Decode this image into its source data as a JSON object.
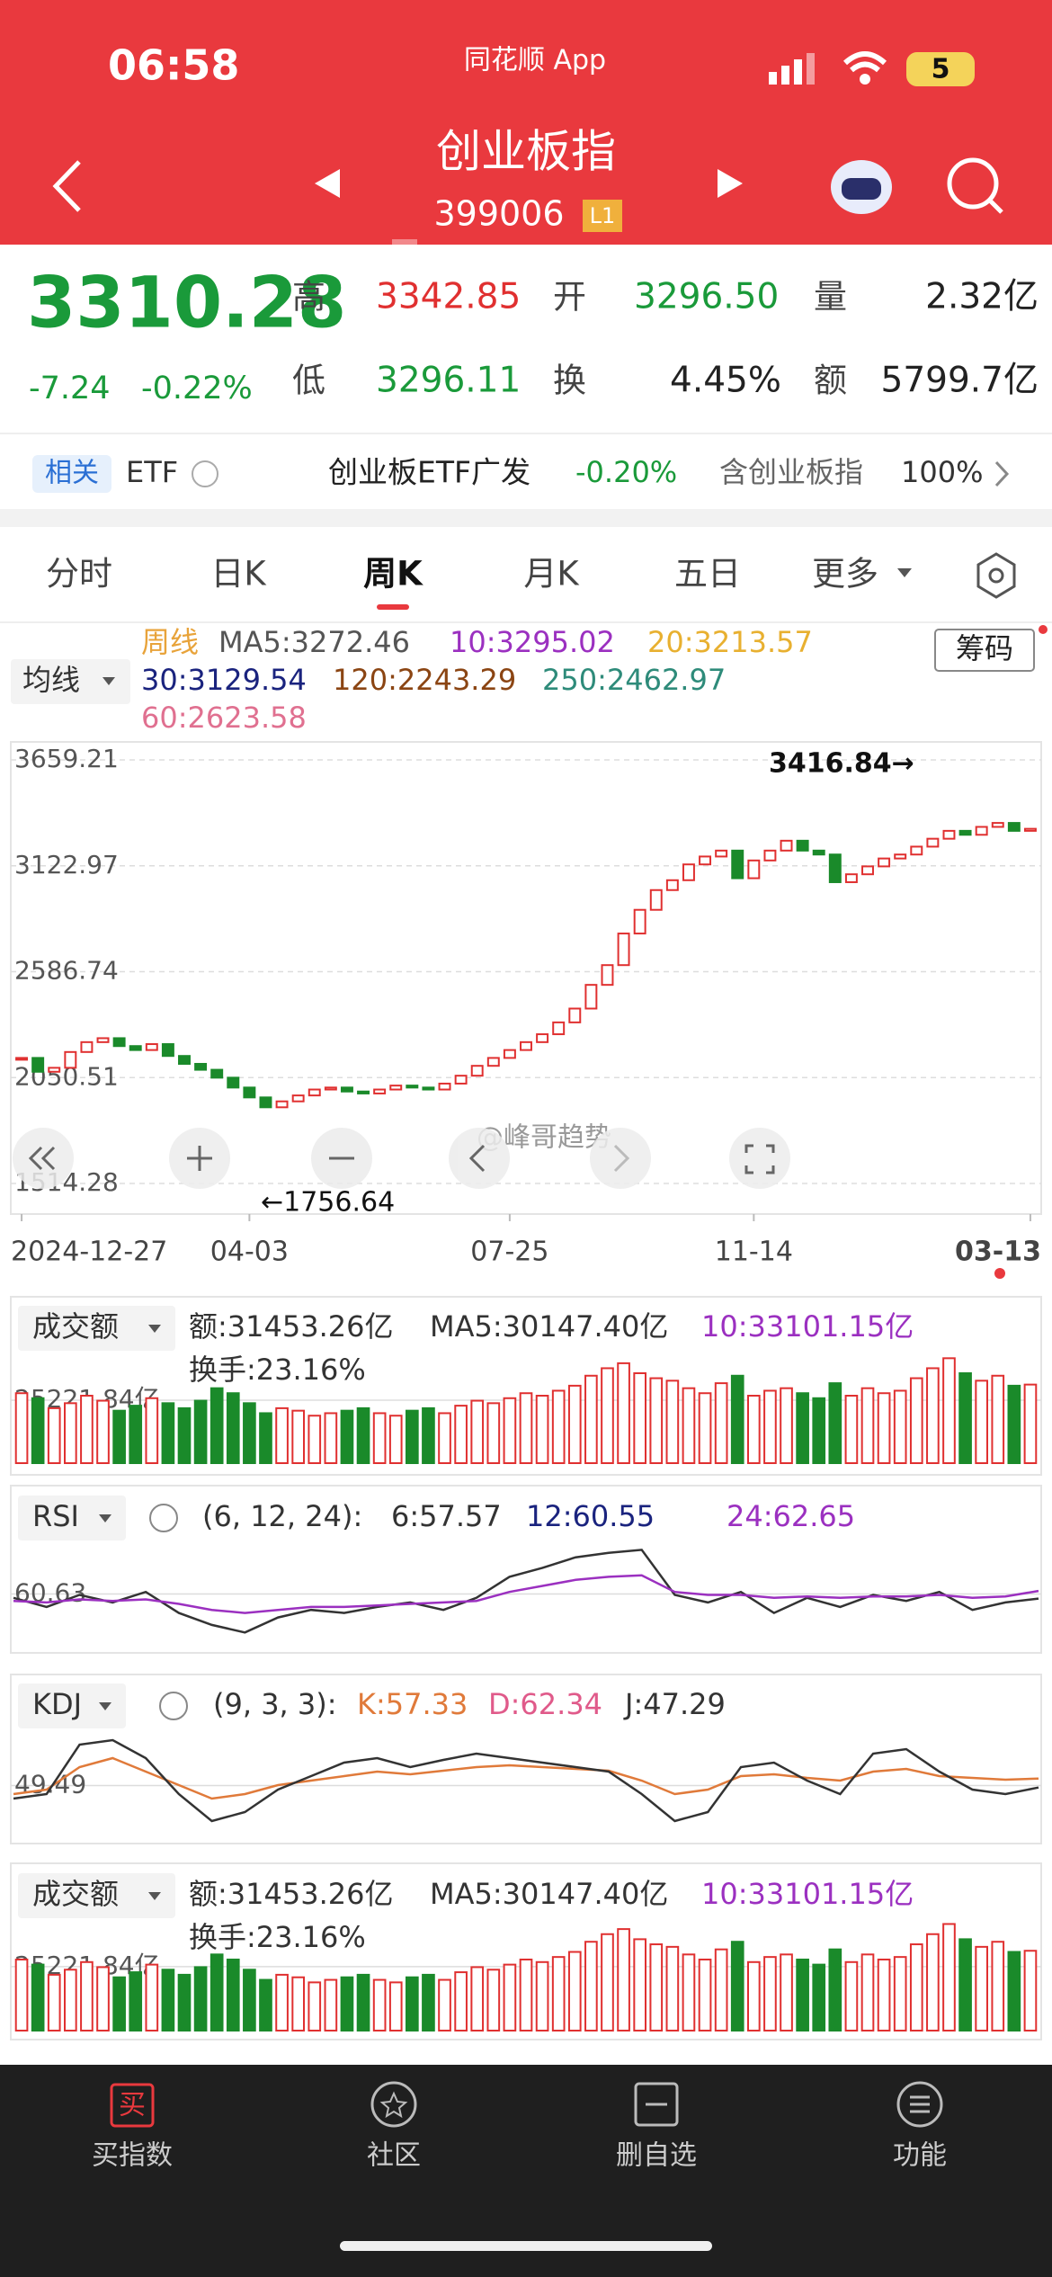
{
  "status_bar": {
    "time": "06:58",
    "app": "同花顺 App",
    "battery": "5"
  },
  "header": {
    "title": "创业板指",
    "code": "399006",
    "badge": "L1"
  },
  "quote": {
    "price": "3310.28",
    "change": "-7.24",
    "change_pct": "-0.22%",
    "rows": [
      [
        {
          "label": "高",
          "value": "3342.85"
        },
        {
          "label": "开",
          "value": "3296.50"
        },
        {
          "label": "量",
          "value": "2.32亿"
        }
      ],
      [
        {
          "label": "低",
          "value": "3296.11"
        },
        {
          "label": "换",
          "value": "4.45%"
        },
        {
          "label": "额",
          "value": "5799.7亿"
        }
      ]
    ]
  },
  "etf": {
    "tag": "相关",
    "name": "ETF",
    "fund": "创业板ETF广发",
    "fund_change": "-0.20%",
    "holding": "含创业板指",
    "holding_pct": "100%"
  },
  "tabs": [
    "分时",
    "日K",
    "周K",
    "月K",
    "五日",
    "更多"
  ],
  "ma_legend": {
    "button": "均线",
    "period": "周线",
    "items": [
      {
        "text": "MA5:3272.46",
        "color": "#555555"
      },
      {
        "text": "10:3295.02",
        "color": "#9b30c0"
      },
      {
        "text": "20:3213.57",
        "color": "#e8b030"
      },
      {
        "text": "30:3129.54",
        "color": "#1a237e"
      },
      {
        "text": "120:2243.29",
        "color": "#8b4513"
      },
      {
        "text": "250:2462.97",
        "color": "#2e8b7a"
      },
      {
        "text": "60:2623.58",
        "color": "#e07090"
      }
    ]
  },
  "chip_button": "筹码",
  "chart_data": [
    {
      "type": "candlestick",
      "categories": [
        "2024-12-27",
        null,
        null,
        null,
        null,
        null,
        null,
        null,
        null,
        null,
        null,
        null,
        null,
        null,
        "04-03",
        null,
        null,
        null,
        null,
        null,
        null,
        null,
        null,
        null,
        null,
        null,
        null,
        null,
        null,
        null,
        "07-25",
        null,
        null,
        null,
        null,
        null,
        null,
        null,
        null,
        null,
        null,
        null,
        null,
        null,
        null,
        "11-14",
        null,
        null,
        null,
        null,
        null,
        null,
        null,
        null,
        null,
        null,
        null,
        null,
        null,
        null,
        null,
        null,
        "03-13"
      ],
      "values": [
        2150,
        2080,
        2100,
        2180,
        2230,
        2250,
        2210,
        2190,
        2220,
        2160,
        2120,
        2090,
        2050,
        2000,
        1950,
        1900,
        1930,
        1960,
        1990,
        2000,
        1980,
        1970,
        1990,
        2010,
        2000,
        1990,
        2020,
        2060,
        2110,
        2150,
        2190,
        2230,
        2270,
        2330,
        2400,
        2520,
        2620,
        2780,
        2900,
        3000,
        3050,
        3130,
        3170,
        3200,
        3060,
        3150,
        3200,
        3250,
        3200,
        3180,
        3040,
        3080,
        3120,
        3160,
        3180,
        3220,
        3260,
        3300,
        3280,
        3320,
        3340,
        3300,
        3310.28
      ],
      "up_color": "#e03030",
      "down_color": "#1a8a2a",
      "ylim": [
        1514.28,
        3659.21
      ],
      "yticks": [
        1514.28,
        2050.51,
        2586.74,
        3122.97,
        3659.21
      ],
      "annotations": [
        {
          "text": "3416.84→"
        },
        {
          "text": "←1756.64"
        },
        {
          "text": "@峰哥趋势"
        }
      ]
    },
    {
      "type": "bar",
      "title": "成交额",
      "stats": [
        "额:31453.26亿",
        "MA5:30147.40亿",
        "10:33101.15亿"
      ],
      "turnover": "换手:23.16%",
      "values": [
        28000,
        26000,
        22000,
        24000,
        27000,
        25000,
        21000,
        23000,
        26000,
        24000,
        22000,
        25000,
        30000,
        28000,
        24000,
        20000,
        22000,
        21000,
        19000,
        20000,
        21000,
        22000,
        20000,
        19000,
        21000,
        22000,
        20000,
        23000,
        25000,
        24000,
        26000,
        28000,
        27000,
        29000,
        31000,
        35000,
        38000,
        40000,
        36000,
        34000,
        33000,
        30000,
        28000,
        32000,
        35000,
        27000,
        29000,
        30000,
        28000,
        26000,
        32000,
        27000,
        30000,
        28000,
        29000,
        34000,
        38000,
        42000,
        36000,
        33000,
        35000,
        31000,
        31453.26
      ],
      "ylim": [
        0,
        45000
      ],
      "yticks": [
        {
          "value": 25221.84,
          "label": "25221.84亿"
        }
      ]
    },
    {
      "type": "line",
      "title": "RSI",
      "params": "(6, 12, 24):",
      "stats": [
        "6:57.57",
        "12:60.55",
        "24:62.65"
      ],
      "series": [
        {
          "color": "#333333",
          "values": [
            58,
            52,
            60,
            55,
            62,
            48,
            40,
            35,
            45,
            50,
            48,
            52,
            55,
            50,
            58,
            72,
            78,
            85,
            88,
            90,
            60,
            55,
            62,
            48,
            58,
            52,
            60,
            56,
            62,
            50,
            55,
            57.57
          ]
        },
        {
          "color": "#9b30c0",
          "values": [
            56,
            55,
            57,
            56,
            57,
            54,
            50,
            48,
            50,
            52,
            52,
            53,
            54,
            55,
            56,
            62,
            66,
            70,
            72,
            73,
            62,
            60,
            60,
            58,
            59,
            58,
            59,
            59,
            60,
            58,
            59,
            62.65
          ]
        }
      ],
      "ylim": [
        25,
        95
      ],
      "yticks": [
        60.63
      ]
    },
    {
      "type": "line",
      "title": "KDJ",
      "params": "(9, 3, 3):",
      "stats": [
        "K:57.33",
        "D:62.34",
        "J:47.29"
      ],
      "series": [
        {
          "color": "#e07a3a",
          "values": [
            40,
            45,
            70,
            80,
            65,
            50,
            35,
            40,
            50,
            55,
            60,
            65,
            62,
            66,
            70,
            72,
            70,
            68,
            66,
            55,
            40,
            45,
            60,
            62,
            58,
            55,
            65,
            68,
            60,
            58,
            56,
            57.33
          ]
        },
        {
          "color": "#333333",
          "values": [
            35,
            40,
            95,
            100,
            80,
            40,
            10,
            20,
            45,
            60,
            75,
            80,
            70,
            78,
            85,
            80,
            75,
            70,
            65,
            40,
            10,
            20,
            70,
            75,
            55,
            40,
            85,
            90,
            65,
            45,
            40,
            47.29
          ]
        }
      ],
      "ylim": [
        -10,
        110
      ],
      "yticks": [
        49.49
      ]
    }
  ],
  "nav_icon": "买",
  "nav": [
    "买指数",
    "社区",
    "删自选",
    "功能"
  ]
}
